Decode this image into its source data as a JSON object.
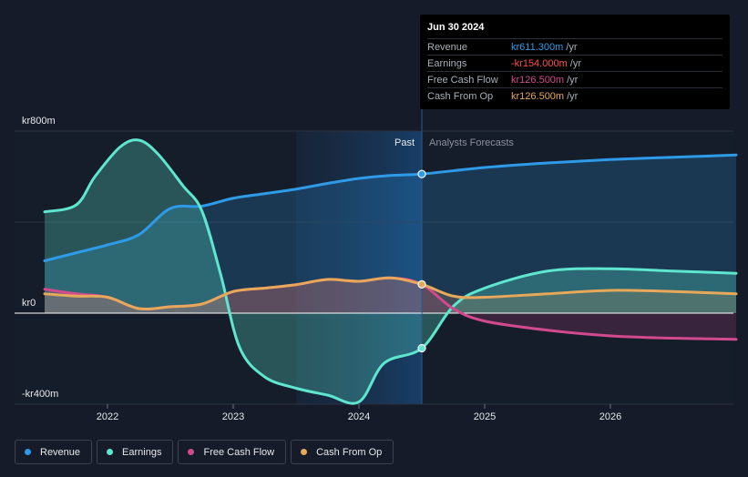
{
  "chart_data": {
    "type": "line",
    "currency_prefix": "kr",
    "y_ticks": [
      {
        "value": 800,
        "label": "kr800m"
      },
      {
        "value": 0,
        "label": "kr0"
      },
      {
        "value": -400,
        "label": "-kr400m"
      }
    ],
    "ylim": [
      -400,
      800
    ],
    "xlim": [
      2021.25,
      2027.0
    ],
    "x_ticks": [
      {
        "value": 2022,
        "label": "2022"
      },
      {
        "value": 2023,
        "label": "2023"
      },
      {
        "value": 2024,
        "label": "2024"
      },
      {
        "value": 2025,
        "label": "2025"
      },
      {
        "value": 2026,
        "label": "2026"
      }
    ],
    "past_label": "Past",
    "forecast_label": "Analysts Forecasts",
    "past_end": 2024.5,
    "highlight_start": 2023.5,
    "series": [
      {
        "name": "Revenue",
        "color": "#2e9be8",
        "fill": true,
        "points": [
          [
            2021.5,
            230
          ],
          [
            2021.75,
            265
          ],
          [
            2022.0,
            300
          ],
          [
            2022.25,
            345
          ],
          [
            2022.5,
            460
          ],
          [
            2022.75,
            470
          ],
          [
            2023.0,
            505
          ],
          [
            2023.25,
            525
          ],
          [
            2023.5,
            545
          ],
          [
            2023.75,
            570
          ],
          [
            2024.0,
            592
          ],
          [
            2024.25,
            605
          ],
          [
            2024.5,
            611.3
          ],
          [
            2025.0,
            640
          ],
          [
            2025.5,
            660
          ],
          [
            2026.0,
            675
          ],
          [
            2026.5,
            685
          ],
          [
            2027.0,
            695
          ]
        ]
      },
      {
        "name": "Earnings",
        "color": "#5ee6cf",
        "fill": true,
        "points": [
          [
            2021.5,
            445
          ],
          [
            2021.75,
            475
          ],
          [
            2021.9,
            600
          ],
          [
            2022.1,
            730
          ],
          [
            2022.25,
            760
          ],
          [
            2022.4,
            700
          ],
          [
            2022.6,
            560
          ],
          [
            2022.75,
            450
          ],
          [
            2022.9,
            170
          ],
          [
            2023.05,
            -150
          ],
          [
            2023.25,
            -280
          ],
          [
            2023.5,
            -330
          ],
          [
            2023.75,
            -360
          ],
          [
            2024.0,
            -390
          ],
          [
            2024.2,
            -220
          ],
          [
            2024.5,
            -154
          ],
          [
            2024.75,
            30
          ],
          [
            2025.0,
            110
          ],
          [
            2025.5,
            185
          ],
          [
            2026.0,
            195
          ],
          [
            2026.5,
            185
          ],
          [
            2027.0,
            175
          ]
        ]
      },
      {
        "name": "Free Cash Flow",
        "color": "#d14a8e",
        "fill": true,
        "points": [
          [
            2021.5,
            105
          ],
          [
            2021.75,
            85
          ],
          [
            2022.0,
            70
          ],
          [
            2022.25,
            20
          ],
          [
            2022.5,
            28
          ],
          [
            2022.75,
            40
          ],
          [
            2023.0,
            95
          ],
          [
            2023.25,
            110
          ],
          [
            2023.5,
            125
          ],
          [
            2023.75,
            148
          ],
          [
            2024.0,
            140
          ],
          [
            2024.25,
            155
          ],
          [
            2024.5,
            126.5
          ],
          [
            2024.75,
            20
          ],
          [
            2025.0,
            -35
          ],
          [
            2025.5,
            -75
          ],
          [
            2026.0,
            -100
          ],
          [
            2026.5,
            -110
          ],
          [
            2027.0,
            -115
          ]
        ]
      },
      {
        "name": "Cash From Op",
        "color": "#e8a85a",
        "fill": true,
        "points": [
          [
            2021.5,
            85
          ],
          [
            2021.75,
            75
          ],
          [
            2022.0,
            70
          ],
          [
            2022.25,
            20
          ],
          [
            2022.5,
            28
          ],
          [
            2022.75,
            40
          ],
          [
            2023.0,
            95
          ],
          [
            2023.25,
            110
          ],
          [
            2023.5,
            125
          ],
          [
            2023.75,
            148
          ],
          [
            2024.0,
            140
          ],
          [
            2024.25,
            155
          ],
          [
            2024.5,
            126.5
          ],
          [
            2024.75,
            75
          ],
          [
            2025.0,
            70
          ],
          [
            2025.5,
            85
          ],
          [
            2026.0,
            100
          ],
          [
            2026.5,
            95
          ],
          [
            2027.0,
            85
          ]
        ]
      }
    ]
  },
  "tooltip": {
    "date": "Jun 30 2024",
    "rows": [
      {
        "label": "Revenue",
        "value": "kr611.300m",
        "unit": "/yr",
        "color": "#2e9be8"
      },
      {
        "label": "Earnings",
        "value": "-kr154.000m",
        "unit": "/yr",
        "color": "#ff4d4d"
      },
      {
        "label": "Free Cash Flow",
        "value": "kr126.500m",
        "unit": "/yr",
        "color": "#d14a8e"
      },
      {
        "label": "Cash From Op",
        "value": "kr126.500m",
        "unit": "/yr",
        "color": "#e8a85a"
      }
    ]
  },
  "legend": [
    {
      "label": "Revenue",
      "color": "#2e9be8"
    },
    {
      "label": "Earnings",
      "color": "#5ee6cf"
    },
    {
      "label": "Free Cash Flow",
      "color": "#d14a8e"
    },
    {
      "label": "Cash From Op",
      "color": "#e8a85a"
    }
  ]
}
